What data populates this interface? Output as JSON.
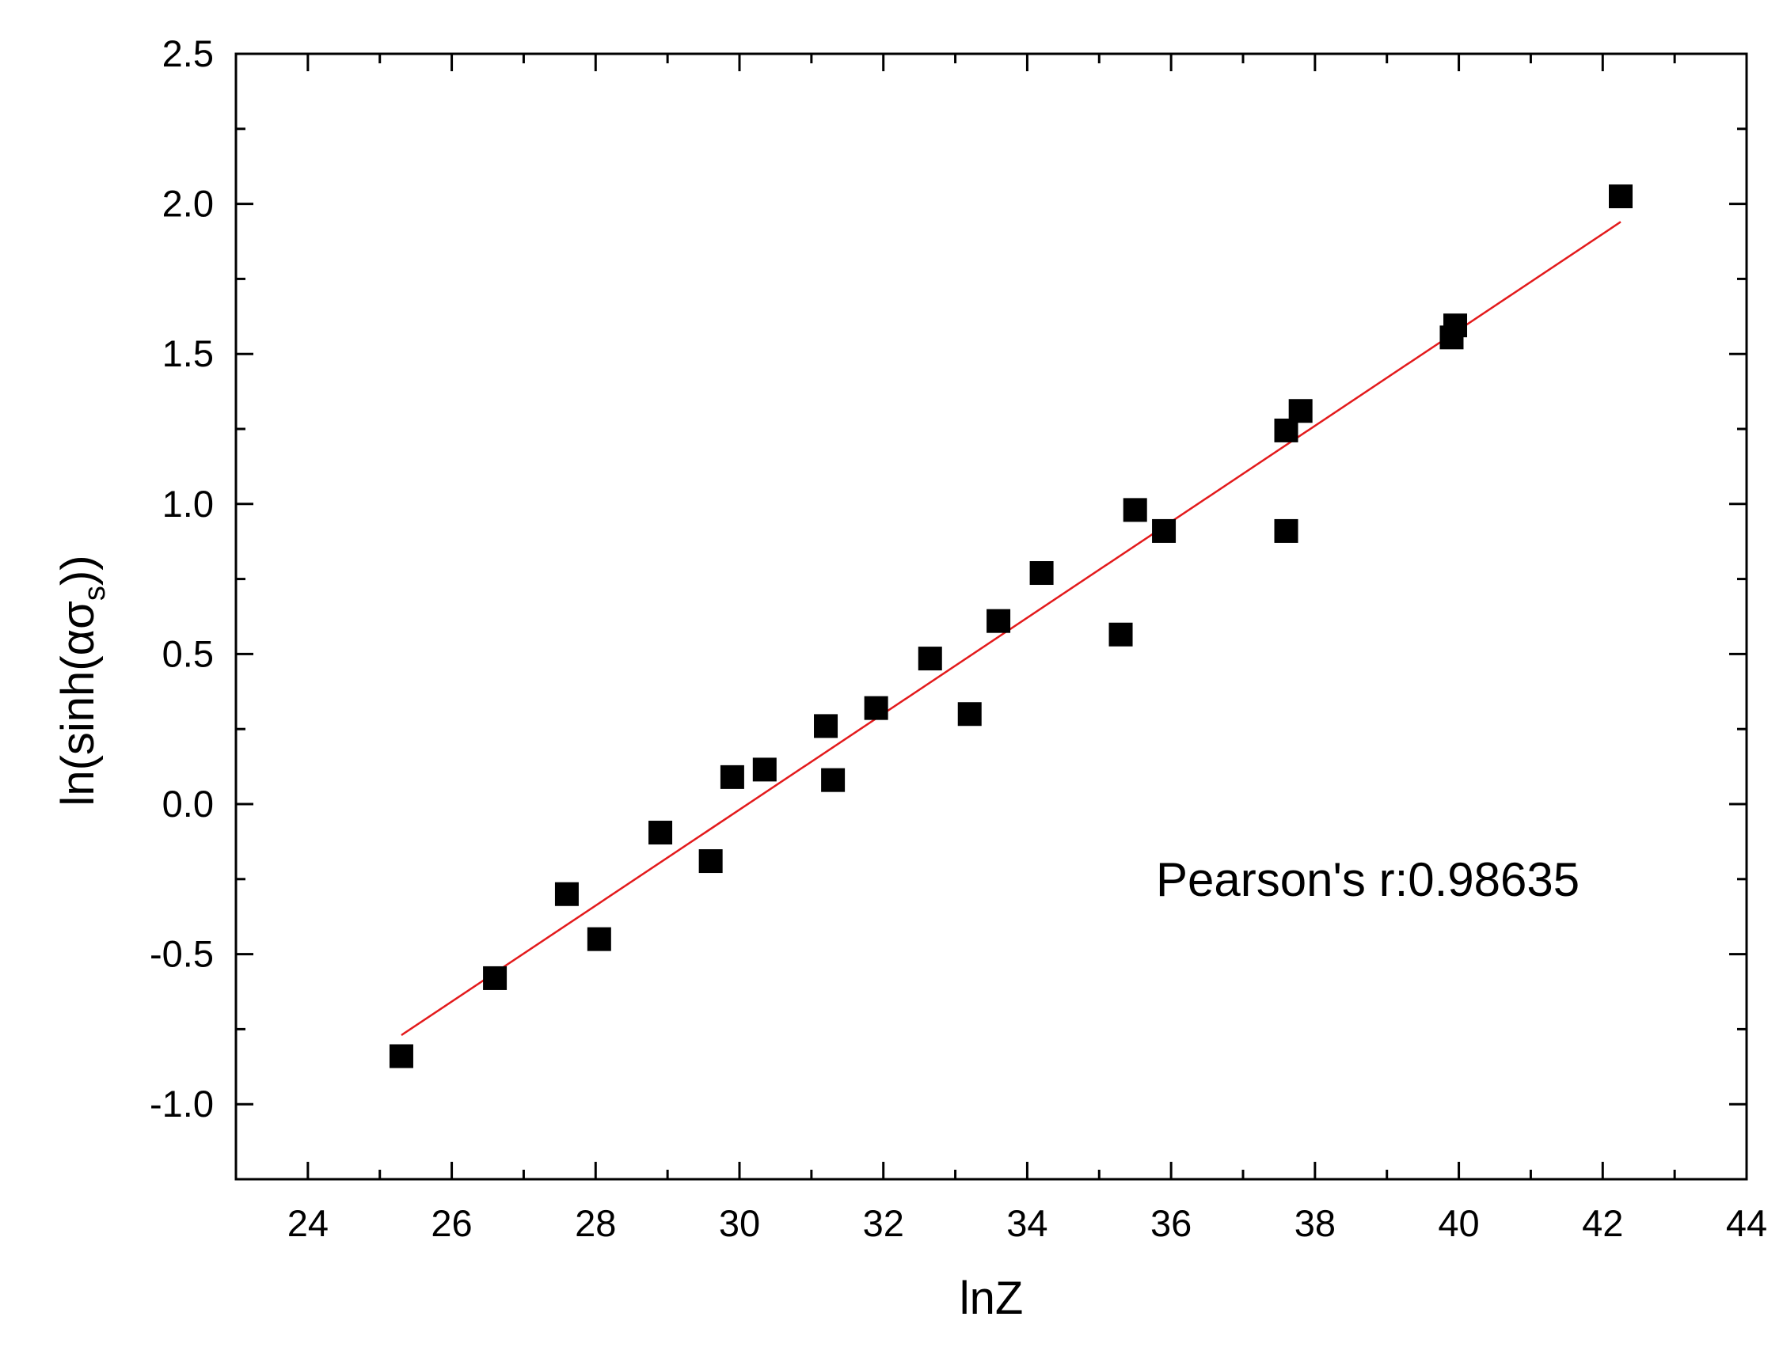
{
  "chart_data": {
    "type": "scatter",
    "xlabel": "lnZ",
    "ylabel": {
      "prefix": "ln(sinh(",
      "symbol": "ασ",
      "subscript": "s",
      "suffix": "))"
    },
    "xlim": [
      23,
      44
    ],
    "ylim": [
      -1.25,
      2.5
    ],
    "x_ticks": [
      24,
      26,
      28,
      30,
      32,
      34,
      36,
      38,
      40,
      42,
      44
    ],
    "x_tick_labels": [
      "24",
      "26",
      "28",
      "30",
      "32",
      "34",
      "36",
      "38",
      "40",
      "42",
      "44"
    ],
    "y_ticks": [
      -1.0,
      -0.5,
      0.0,
      0.5,
      1.0,
      1.5,
      2.0,
      2.5
    ],
    "y_tick_labels": [
      "-1.0",
      "-0.5",
      "0.0",
      "0.5",
      "1.0",
      "1.5",
      "2.0",
      "2.5"
    ],
    "grid": false,
    "legend": "none",
    "annotation": "Pearson's r:0.98635",
    "series": [
      {
        "kind": "points",
        "marker": "square",
        "color": "#000000",
        "x": [
          25.3,
          26.6,
          27.6,
          28.05,
          28.9,
          29.6,
          29.9,
          30.35,
          31.2,
          31.3,
          31.9,
          32.65,
          33.2,
          33.6,
          34.2,
          35.3,
          35.5,
          35.9,
          37.6,
          37.6,
          37.8,
          39.9,
          39.95,
          42.25
        ],
        "y": [
          -0.84,
          -0.58,
          -0.3,
          -0.45,
          -0.095,
          -0.19,
          0.09,
          0.115,
          0.26,
          0.08,
          0.32,
          0.485,
          0.3,
          0.61,
          0.77,
          0.565,
          0.98,
          0.91,
          0.91,
          1.245,
          1.31,
          1.555,
          1.595,
          2.025
        ]
      },
      {
        "kind": "fit",
        "color": "#e31a1c",
        "x": [
          25.3,
          42.25
        ],
        "y": [
          -0.77,
          1.94
        ]
      }
    ]
  }
}
